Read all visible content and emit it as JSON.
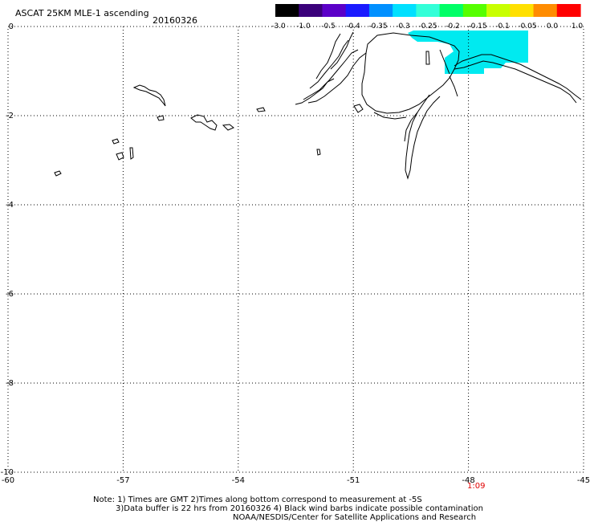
{
  "header": {
    "title": "ASCAT 25KM MLE-1 ascending",
    "date": "20160326"
  },
  "colorbar": {
    "ticks": [
      "-3.0",
      "-1.0",
      "-0.5",
      "-0.4",
      "-0.35",
      "-0.3",
      "-0.25",
      "-0.2",
      "-0.15",
      "-0.1",
      "-0.05",
      "0.0",
      "1.0"
    ],
    "colors": [
      "#000000",
      "#3a007a",
      "#5b00c8",
      "#1a1aff",
      "#0090ff",
      "#00e0ff",
      "#33ffd8",
      "#00ff66",
      "#55ff00",
      "#c8ff00",
      "#ffe000",
      "#ff8c00",
      "#ff0000"
    ]
  },
  "map": {
    "lon_ticks": [
      "-60",
      "-57",
      "-54",
      "-51",
      "-48",
      "-45"
    ],
    "lat_ticks": [
      "0",
      "-2",
      "-4",
      "-6",
      "-8",
      "-10"
    ],
    "time_label": "1:09",
    "coast_color": "#000000",
    "swath_color": "#00eaf0"
  },
  "notes": {
    "line1": "Note: 1) Times are GMT 2)Times along bottom correspond to measurement at -5S",
    "line2": "3)Data buffer is 22 hrs from 20160326 4) Black wind barbs indicate possible contamination",
    "line3": "NOAA/NESDIS/Center for Satellite Applications and Research"
  }
}
